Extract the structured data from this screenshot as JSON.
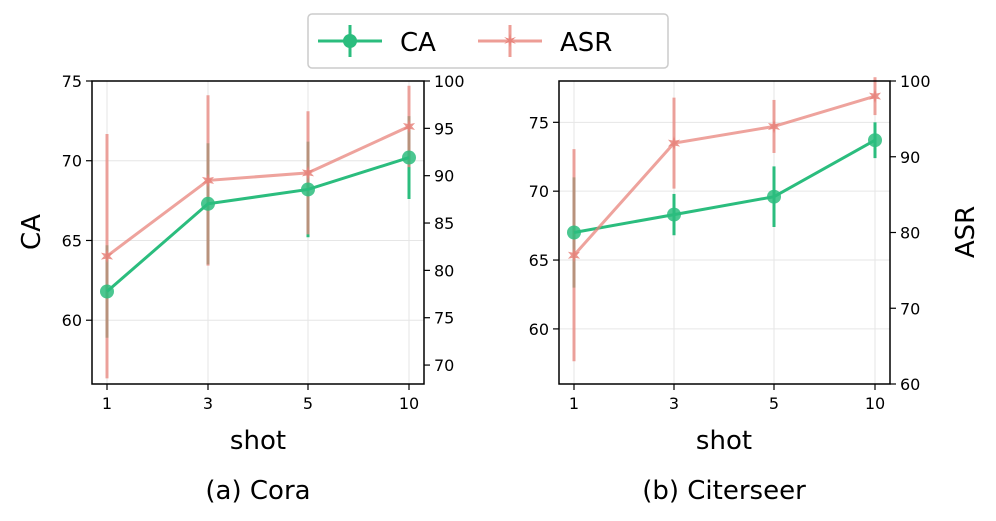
{
  "legend": {
    "entries": [
      {
        "label": "CA",
        "color": "#2bbd7e",
        "marker": "circle"
      },
      {
        "label": "ASR",
        "color": "#e8847c",
        "marker": "star"
      }
    ]
  },
  "chart_data": [
    {
      "type": "line",
      "caption": "(a) Cora",
      "xlabel": "shot",
      "ylabel_left": "CA",
      "ylabel_right": "",
      "categories": [
        "1",
        "3",
        "5",
        "10"
      ],
      "left_ylim": [
        56,
        75
      ],
      "left_yticks": [
        60,
        65,
        70,
        75
      ],
      "right_ylim": [
        68,
        100
      ],
      "right_yticks": [
        70,
        75,
        80,
        85,
        90,
        95,
        100
      ],
      "grid": true,
      "series": [
        {
          "name": "CA",
          "axis": "left",
          "values": [
            61.8,
            67.3,
            68.2,
            70.2
          ],
          "errors": [
            2.9,
            3.8,
            3.0,
            2.6
          ]
        },
        {
          "name": "ASR",
          "axis": "right",
          "values": [
            81.5,
            89.5,
            90.3,
            95.2
          ],
          "errors": [
            12.9,
            9.0,
            6.5,
            4.3
          ]
        }
      ]
    },
    {
      "type": "line",
      "caption": "(b) Citerseer",
      "xlabel": "shot",
      "ylabel_left": "",
      "ylabel_right": "ASR",
      "categories": [
        "1",
        "3",
        "5",
        "10"
      ],
      "left_ylim": [
        56,
        78
      ],
      "left_yticks": [
        60,
        65,
        70,
        75
      ],
      "right_ylim": [
        60,
        100
      ],
      "right_yticks": [
        60,
        70,
        80,
        90,
        100
      ],
      "grid": true,
      "series": [
        {
          "name": "CA",
          "axis": "left",
          "values": [
            67.0,
            68.3,
            69.6,
            73.7
          ],
          "errors": [
            4.0,
            1.5,
            2.2,
            1.3
          ]
        },
        {
          "name": "ASR",
          "axis": "right",
          "values": [
            77.0,
            91.8,
            94.0,
            98.0
          ],
          "errors": [
            14.0,
            6.0,
            3.5,
            2.5
          ]
        }
      ]
    }
  ]
}
